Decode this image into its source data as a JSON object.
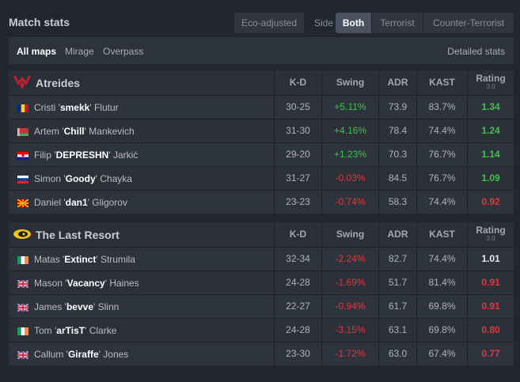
{
  "header": {
    "title": "Match stats",
    "eco_label": "Eco-adjusted",
    "side_label": "Side",
    "side_options": [
      "Both",
      "Terrorist",
      "Counter-Terrorist"
    ],
    "side_selected": "Both"
  },
  "maps": {
    "items": [
      "All maps",
      "Mirage",
      "Overpass"
    ],
    "selected": "All maps",
    "detailed_label": "Detailed stats"
  },
  "columns": {
    "kd": "K-D",
    "swing": "Swing",
    "adr": "ADR",
    "kast": "KAST",
    "rating": "Rating",
    "rating_version": "3.0"
  },
  "teams": [
    {
      "name": "Atreides",
      "logo_icon": "atreides-hawk-icon",
      "logo_color": "#c8202e",
      "players": [
        {
          "first": "Cristi",
          "nick": "smekk",
          "last": "Flutur",
          "flag": "romania",
          "kd": "30-25",
          "swing": "+5.11%",
          "adr": "73.9",
          "kast": "83.7%",
          "rating": "1.34"
        },
        {
          "first": "Artem",
          "nick": "Chill",
          "last": "Mankevich",
          "flag": "belarus",
          "kd": "31-30",
          "swing": "+4.16%",
          "adr": "78.4",
          "kast": "74.4%",
          "rating": "1.24"
        },
        {
          "first": "Filip",
          "nick": "DEPRESHN",
          "last": "Jarkić",
          "flag": "croatia",
          "kd": "29-20",
          "swing": "+1.23%",
          "adr": "70.3",
          "kast": "76.7%",
          "rating": "1.14"
        },
        {
          "first": "Simon",
          "nick": "Goody",
          "last": "Chayka",
          "flag": "russia",
          "kd": "31-27",
          "swing": "-0.03%",
          "adr": "84.5",
          "kast": "76.7%",
          "rating": "1.09"
        },
        {
          "first": "Daniel",
          "nick": "dan1",
          "last": "Gligorov",
          "flag": "north-macedonia",
          "kd": "23-23",
          "swing": "-0.74%",
          "adr": "58.3",
          "kast": "74.4%",
          "rating": "0.92"
        }
      ]
    },
    {
      "name": "The Last Resort",
      "logo_icon": "last-resort-eye-icon",
      "logo_color": "#f0c419",
      "players": [
        {
          "first": "Matas",
          "nick": "Extinct",
          "last": "Strumila",
          "flag": "ireland",
          "kd": "32-34",
          "swing": "-2.24%",
          "adr": "82.7",
          "kast": "74.4%",
          "rating": "1.01"
        },
        {
          "first": "Mason",
          "nick": "Vacancy",
          "last": "Haines",
          "flag": "united-kingdom",
          "kd": "24-28",
          "swing": "-1.69%",
          "adr": "51.7",
          "kast": "81.4%",
          "rating": "0.91"
        },
        {
          "first": "James",
          "nick": "bevve",
          "last": "Slinn",
          "flag": "united-kingdom",
          "kd": "22-27",
          "swing": "-0.94%",
          "adr": "61.7",
          "kast": "69.8%",
          "rating": "0.91"
        },
        {
          "first": "Tom",
          "nick": "arTisT",
          "last": "Clarke",
          "flag": "ireland",
          "kd": "24-28",
          "swing": "-3.15%",
          "adr": "63.1",
          "kast": "69.8%",
          "rating": "0.80"
        },
        {
          "first": "Callum",
          "nick": "Giraffe",
          "last": "Jones",
          "flag": "united-kingdom",
          "kd": "23-30",
          "swing": "-1.72%",
          "adr": "63.0",
          "kast": "67.4%",
          "rating": "0.77"
        }
      ]
    }
  ],
  "colors": {
    "positive": "#3ec34a",
    "negative": "#e0383c",
    "neutral_rating": "#e6e8eb"
  }
}
